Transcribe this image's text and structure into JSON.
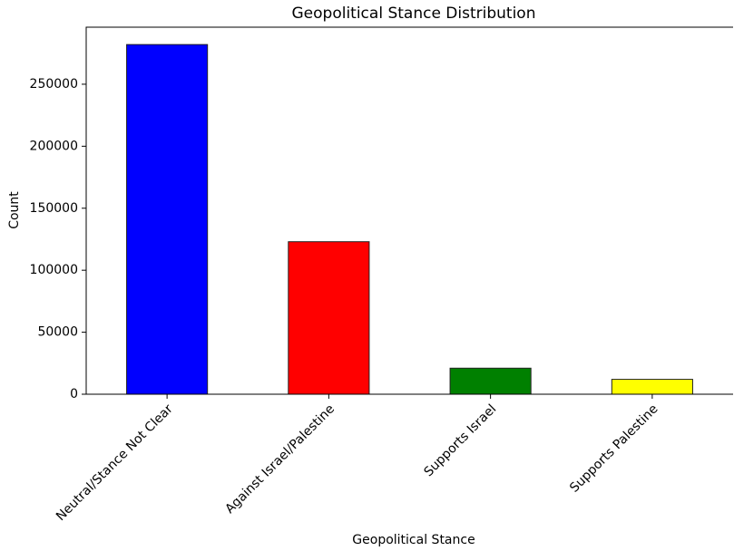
{
  "chart_data": {
    "type": "bar",
    "title": "Geopolitical Stance Distribution",
    "x_label": "Geopolitical Stance",
    "y_label": "Count",
    "categories": [
      "Neutral/Stance Not Clear",
      "Against Israel/Palestine",
      "Supports Israel",
      "Supports Palestine"
    ],
    "values": [
      282000,
      123000,
      21000,
      12000
    ],
    "colors": [
      "#0000ff",
      "#ff0000",
      "#008000",
      "#ffff00"
    ],
    "ylim": [
      0,
      296000
    ],
    "yticks": [
      0,
      50000,
      100000,
      150000,
      200000,
      250000
    ],
    "grid": false
  }
}
